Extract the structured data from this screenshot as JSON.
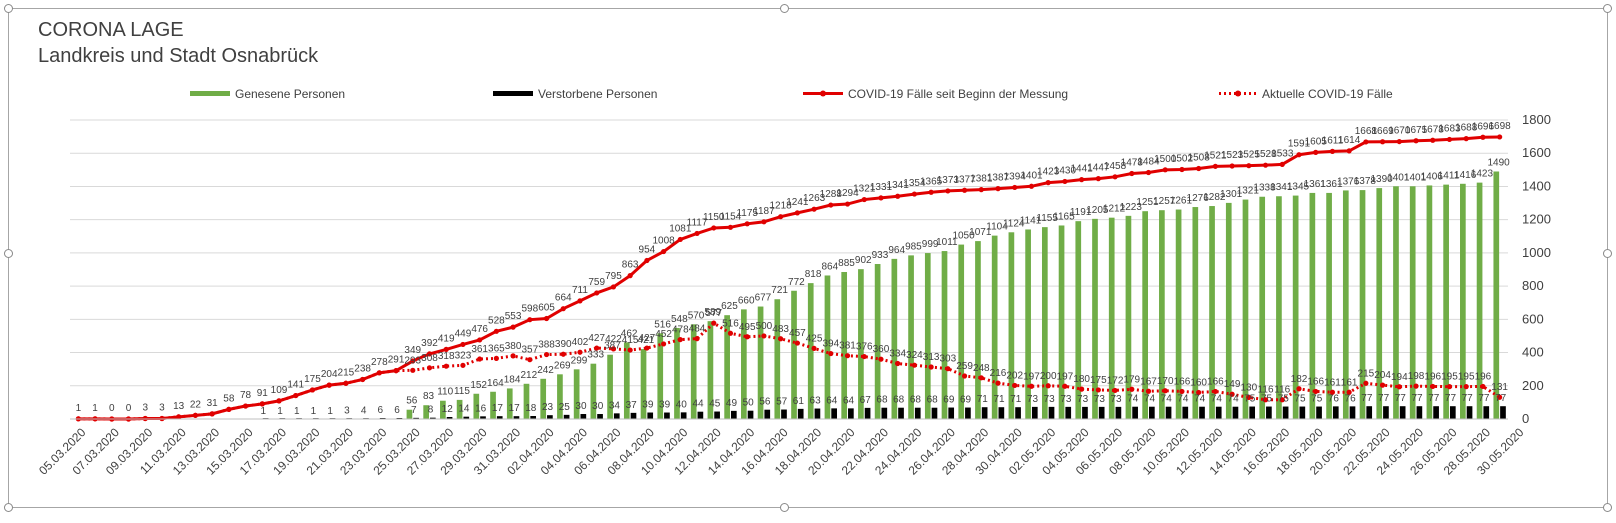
{
  "title": "CORONA LAGE",
  "subtitle": "Landkreis und Stadt Osnabrück",
  "colors": {
    "recovered": "#70ad47",
    "deaths": "#000000",
    "total": "#e00000",
    "active": "#e00000",
    "grid": "#d9d9d9",
    "text": "#404040"
  },
  "chart_data": {
    "type": "bar+line",
    "title": "CORONA LAGE",
    "subtitle": "Landkreis und Stadt Osnabrück",
    "ylim": [
      0,
      1800
    ],
    "yticks": [
      0,
      200,
      400,
      600,
      800,
      1000,
      1200,
      1400,
      1600,
      1800
    ],
    "legend": [
      "Genesene Personen",
      "Verstorbene Personen",
      "COVID-19 Fälle seit Beginn der Messung",
      "Aktuelle COVID-19 Fälle"
    ],
    "x_tick_labels": [
      "05.03.2020",
      "07.03.2020",
      "09.03.2020",
      "11.03.2020",
      "13.03.2020",
      "15.03.2020",
      "17.03.2020",
      "19.03.2020",
      "21.03.2020",
      "23.03.2020",
      "25.03.2020",
      "27.03.2020",
      "29.03.2020",
      "31.03.2020",
      "02.04.2020",
      "04.04.2020",
      "06.04.2020",
      "08.04.2020",
      "10.04.2020",
      "12.04.2020",
      "14.04.2020",
      "16.04.2020",
      "18.04.2020",
      "20.04.2020",
      "22.04.2020",
      "24.04.2020",
      "26.04.2020",
      "28.04.2020",
      "30.04.2020",
      "02.05.2020",
      "04.05.2020",
      "06.05.2020",
      "08.05.2020",
      "10.05.2020",
      "12.05.2020",
      "14.05.2020",
      "16.05.2020",
      "18.05.2020",
      "20.05.2020",
      "22.05.2020",
      "24.05.2020",
      "26.05.2020",
      "28.05.2020",
      "30.05.2020"
    ],
    "series": [
      {
        "name": "COVID-19 Fälle seit Beginn der Messung",
        "type": "line",
        "values": [
          1,
          1,
          0,
          0,
          3,
          3,
          13,
          22,
          31,
          58,
          78,
          91,
          109,
          141,
          175,
          204,
          215,
          238,
          278,
          291,
          349,
          392,
          419,
          449,
          476,
          528,
          553,
          598,
          605,
          664,
          711,
          759,
          795,
          863,
          954,
          1008,
          1081,
          1117,
          1150,
          1154,
          1175,
          1187,
          1218,
          1241,
          1263,
          1288,
          1294,
          1321,
          1331,
          1341,
          1354,
          1365,
          1373,
          1377,
          1381,
          1387,
          1394,
          1401,
          1423,
          1430,
          1441,
          1447,
          1458,
          1478,
          1484,
          1500,
          1502,
          1508,
          1521,
          1523,
          1525,
          1528,
          1533,
          1591,
          1605,
          1611,
          1614,
          1668,
          1669,
          1670,
          1675,
          1678,
          1683,
          1688,
          1696,
          1698
        ]
      },
      {
        "name": "Genesene Personen",
        "type": "bar",
        "values": [
          null,
          null,
          null,
          null,
          null,
          null,
          null,
          null,
          null,
          null,
          null,
          null,
          null,
          null,
          null,
          null,
          null,
          null,
          null,
          null,
          56,
          83,
          110,
          115,
          152,
          164,
          184,
          212,
          242,
          269,
          299,
          333,
          387,
          462,
          421,
          516,
          548,
          570,
          589,
          625,
          660,
          677,
          721,
          772,
          818,
          864,
          885,
          902,
          933,
          964,
          985,
          999,
          1011,
          1050,
          1071,
          1104,
          1124,
          1141,
          1155,
          1165,
          1191,
          1205,
          1212,
          1223,
          1251,
          1257,
          1261,
          1276,
          1282,
          1301,
          1321,
          1338,
          1341,
          1345,
          1361,
          1361,
          1376,
          1378,
          1390,
          1401,
          1401,
          1406,
          1411,
          1416,
          1423,
          1490
        ]
      },
      {
        "name": "Verstorbene Personen",
        "type": "bar",
        "values": [
          null,
          null,
          null,
          null,
          null,
          null,
          null,
          null,
          null,
          null,
          null,
          1,
          1,
          1,
          1,
          1,
          3,
          4,
          6,
          6,
          7,
          8,
          12,
          14,
          16,
          17,
          17,
          18,
          23,
          25,
          30,
          30,
          34,
          37,
          39,
          39,
          40,
          44,
          45,
          49,
          50,
          56,
          57,
          61,
          63,
          64,
          64,
          67,
          68,
          68,
          68,
          68,
          69,
          69,
          71,
          71,
          71,
          73,
          73,
          73,
          73,
          73,
          73,
          74,
          74,
          74,
          74,
          74,
          74,
          74,
          75,
          75,
          75,
          75,
          75,
          76,
          76,
          77,
          77,
          77,
          77,
          77,
          77,
          77,
          77,
          77
        ]
      },
      {
        "name": "Aktuelle COVID-19 Fälle",
        "type": "line",
        "values": [
          1,
          1,
          0,
          0,
          3,
          3,
          13,
          22,
          31,
          58,
          78,
          91,
          109,
          141,
          175,
          204,
          215,
          238,
          278,
          291,
          293,
          308,
          318,
          323,
          361,
          365,
          380,
          357,
          388,
          390,
          402,
          427,
          422,
          415,
          427,
          452,
          478,
          484,
          577,
          516,
          495,
          500,
          483,
          457,
          425,
          394,
          381,
          376,
          360,
          334,
          324,
          313,
          303,
          259,
          248,
          216,
          202,
          197,
          200,
          197,
          180,
          175,
          172,
          179,
          167,
          170,
          166,
          160,
          166,
          149,
          130,
          116,
          116,
          182,
          166,
          161,
          161,
          215,
          204,
          194,
          198,
          196,
          195,
          195,
          196,
          131
        ]
      }
    ],
    "label_series": {
      "total": [
        "1",
        "1",
        "0",
        "0",
        "3",
        "3",
        "13",
        "22",
        "31",
        "58",
        "78",
        "91",
        "109",
        "141",
        "175",
        "204",
        "215",
        "238",
        "278",
        "291",
        "349",
        "392",
        "419",
        "449",
        "476",
        "528",
        "553",
        "598",
        "605",
        "664",
        "711",
        "759",
        "795",
        "863",
        "954",
        "1008",
        "1081",
        "1117",
        "1150",
        "1154",
        "1175",
        "1187",
        "1218",
        "1241",
        "1263",
        "1288",
        "1294",
        "1321",
        "1331",
        "1341",
        "1354",
        "1365",
        "1373",
        "1377",
        "1381",
        "1387",
        "1394",
        "1401",
        "1423",
        "1430",
        "1441",
        "1447",
        "1458",
        "1478",
        "1484",
        "1500",
        "1502",
        "1508",
        "1521",
        "1523",
        "1525",
        "1528",
        "1533",
        "1591",
        "1605",
        "1611",
        "1614",
        "1668",
        "1669",
        "1670",
        "1675",
        "1678",
        "1683",
        "1688",
        "1696",
        "1698"
      ],
      "recovered": [
        "56",
        "83",
        "110",
        "115",
        "152",
        "164",
        "184",
        "212",
        "242",
        "269",
        "299",
        "333",
        "387",
        "462",
        "421",
        "516",
        "548",
        "570",
        "589",
        "625",
        "660",
        "677",
        "721",
        "772",
        "818",
        "864",
        "885",
        "902",
        "933",
        "964",
        "985",
        "999",
        "1011",
        "1050",
        "1071",
        "1104",
        "1124",
        "1141",
        "1155",
        "1165",
        "1191",
        "1205",
        "1212",
        "1223",
        "1251",
        "1257",
        "1261",
        "1276",
        "1282",
        "1301",
        "1321",
        "1338",
        "1341",
        "1345",
        "1361",
        "1361",
        "1376",
        "1378",
        "1390",
        "1401",
        "1401",
        "1406",
        "1411",
        "1416",
        "1423",
        "1490"
      ],
      "deaths": [
        "1",
        "1",
        "1",
        "1",
        "1",
        "3",
        "4",
        "6",
        "6",
        "7",
        "8",
        "12",
        "14",
        "16",
        "17",
        "17",
        "18",
        "23",
        "25",
        "30",
        "30",
        "34",
        "37",
        "39",
        "39",
        "40",
        "44",
        "45",
        "49",
        "50",
        "56",
        "57",
        "61",
        "63",
        "64",
        "64",
        "67",
        "68",
        "68",
        "68",
        "68",
        "69",
        "69",
        "71",
        "71",
        "71",
        "73",
        "73",
        "73",
        "73",
        "73",
        "73",
        "74",
        "74",
        "74",
        "74",
        "74",
        "74",
        "74",
        "75",
        "75",
        "75",
        "75",
        "75",
        "76",
        "76",
        "77",
        "77",
        "77",
        "77",
        "77",
        "77",
        "77",
        "77",
        "77"
      ],
      "active": [
        "293",
        "308",
        "318",
        "323",
        "361",
        "365",
        "380",
        "357",
        "388",
        "390",
        "402",
        "427",
        "422",
        "415",
        "427",
        "452",
        "478",
        "484",
        "577",
        "516",
        "495",
        "500",
        "483",
        "457",
        "425",
        "394",
        "381",
        "376",
        "360",
        "334",
        "324",
        "313",
        "303",
        "259",
        "248",
        "216",
        "202",
        "197",
        "200",
        "197",
        "180",
        "175",
        "172",
        "179",
        "167",
        "170",
        "166",
        "160",
        "166",
        "149",
        "130",
        "116",
        "116",
        "182",
        "166",
        "161",
        "161",
        "215",
        "204",
        "194",
        "198",
        "196",
        "195",
        "195",
        "196",
        "131"
      ]
    }
  }
}
